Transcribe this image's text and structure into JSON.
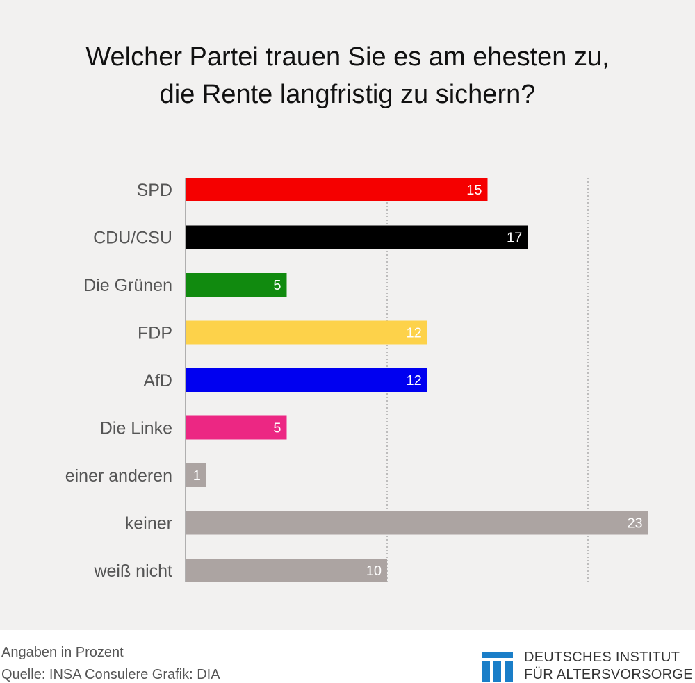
{
  "title_lines": [
    "Welcher Partei trauen Sie es am ehesten zu,",
    "die Rente langfristig zu sichern?"
  ],
  "chart_data": {
    "type": "bar",
    "orientation": "horizontal",
    "title": "Welcher Partei trauen Sie es am ehesten zu, die Rente langfristig zu sichern?",
    "categories": [
      "SPD",
      "CDU/CSU",
      "Die Grünen",
      "FDP",
      "AfD",
      "Die Linke",
      "einer anderen",
      "keiner",
      "weiß nicht"
    ],
    "values": [
      15,
      17,
      5,
      12,
      12,
      5,
      1,
      23,
      10
    ],
    "colors": [
      "#f50000",
      "#000000",
      "#118a0f",
      "#fdd24a",
      "#0000f0",
      "#ec2783",
      "#aca4a2",
      "#aca4a2",
      "#aca4a2"
    ],
    "xlim": [
      0,
      23
    ],
    "gridlines": [
      10,
      20
    ],
    "unit": "Prozent"
  },
  "footer": {
    "note": "Angaben in Prozent",
    "source": "Quelle: INSA Consulere  Grafik: DIA"
  },
  "logo": {
    "line1": "DEUTSCHES INSTITUT",
    "line2": "FÜR ALTERSVORSORGE",
    "color": "#1a7ec8"
  }
}
